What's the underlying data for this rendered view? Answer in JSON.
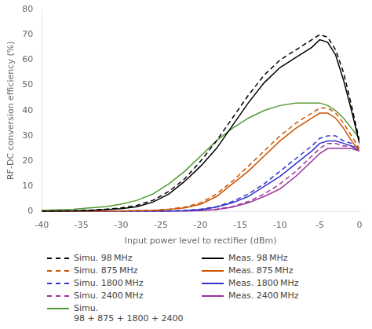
{
  "chart_data": {
    "type": "line",
    "xlabel": "Input power level to rectifier (dBm)",
    "ylabel": "RF-DC conversion efficiency (%)",
    "xlim": [
      -40,
      0
    ],
    "ylim": [
      0,
      80
    ],
    "xticks": [
      -40,
      -35,
      -30,
      -25,
      -20,
      -15,
      -10,
      -5,
      0
    ],
    "yticks": [
      0,
      10,
      20,
      30,
      40,
      50,
      60,
      70,
      80
    ],
    "grid": false,
    "x": [
      -40,
      -38,
      -36,
      -34,
      -32,
      -30,
      -28,
      -26,
      -24,
      -22,
      -20,
      -18,
      -16,
      -14,
      -12,
      -10,
      -8,
      -6,
      -5,
      -4,
      -3,
      -2,
      -1,
      0
    ],
    "series": [
      {
        "name": "Simu. 98 MHz",
        "color": "#000000",
        "line_style": "dashed",
        "values": [
          0.2,
          0.3,
          0.4,
          0.6,
          1.0,
          1.5,
          2.5,
          4.5,
          8,
          13,
          20,
          28,
          37,
          46,
          54,
          60,
          64,
          68,
          70,
          69,
          64,
          55,
          42,
          28
        ]
      },
      {
        "name": "Meas. 98 MHz",
        "color": "#000000",
        "line_style": "solid",
        "values": [
          0.1,
          0.2,
          0.3,
          0.5,
          0.8,
          1.2,
          2.0,
          3.8,
          7,
          12,
          18,
          25,
          34,
          43,
          51,
          57,
          61,
          65,
          68,
          67,
          62,
          52,
          40,
          27
        ]
      },
      {
        "name": "Simu. 875 MHz",
        "color": "#cc5500",
        "line_style": "dashed",
        "values": [
          0.1,
          0.1,
          0.1,
          0.2,
          0.2,
          0.3,
          0.4,
          0.6,
          1.0,
          1.8,
          3.5,
          7,
          12,
          18,
          24,
          30,
          35,
          39,
          41,
          41,
          39,
          35,
          30,
          25
        ]
      },
      {
        "name": "Meas. 875 MHz",
        "color": "#cc5500",
        "line_style": "solid",
        "values": [
          0.1,
          0.1,
          0.1,
          0.1,
          0.2,
          0.3,
          0.4,
          0.5,
          0.9,
          1.5,
          3.0,
          6,
          11,
          16,
          22,
          28,
          33,
          37,
          39,
          39,
          37,
          33,
          28,
          24
        ]
      },
      {
        "name": "Simu. 1800 MHz",
        "color": "#3333cc",
        "line_style": "dashed",
        "values": [
          0.0,
          0.0,
          0.0,
          0.0,
          0.1,
          0.1,
          0.1,
          0.2,
          0.3,
          0.5,
          1.0,
          2.0,
          4,
          7,
          11,
          16,
          21,
          26,
          29,
          30,
          30,
          28,
          27,
          25
        ]
      },
      {
        "name": "Meas. 1800 MHz",
        "color": "#3333cc",
        "line_style": "solid",
        "values": [
          0.0,
          0.0,
          0.0,
          0.0,
          0.0,
          0.1,
          0.1,
          0.1,
          0.2,
          0.4,
          0.8,
          1.8,
          3.5,
          6,
          10,
          14,
          19,
          24,
          27,
          28,
          28,
          27,
          26,
          24
        ]
      },
      {
        "name": "Simu. 2400 MHz",
        "color": "#993399",
        "line_style": "dashed",
        "values": [
          0.0,
          0.0,
          0.0,
          0.0,
          0.0,
          0.0,
          0.1,
          0.1,
          0.2,
          0.3,
          0.5,
          1.0,
          2,
          4,
          7,
          11,
          16,
          22,
          25,
          27,
          27,
          26,
          26,
          25
        ]
      },
      {
        "name": "Meas. 2400 MHz",
        "color": "#993399",
        "line_style": "solid",
        "values": [
          0.0,
          0.0,
          0.0,
          0.0,
          0.0,
          0.0,
          0.0,
          0.1,
          0.1,
          0.2,
          0.4,
          0.8,
          1.8,
          3.5,
          6,
          9,
          14,
          20,
          23,
          25,
          25,
          25,
          25,
          24
        ]
      },
      {
        "name": "Simu.\n98 + 875 + 1800 + 2400",
        "color": "#559933",
        "line_style": "solid",
        "values": [
          0.5,
          0.7,
          1.0,
          1.5,
          2.0,
          3.0,
          4.5,
          7,
          11,
          16,
          22,
          28,
          33,
          37,
          40,
          42,
          43,
          43,
          43,
          42,
          40,
          37,
          33,
          29
        ]
      }
    ]
  }
}
